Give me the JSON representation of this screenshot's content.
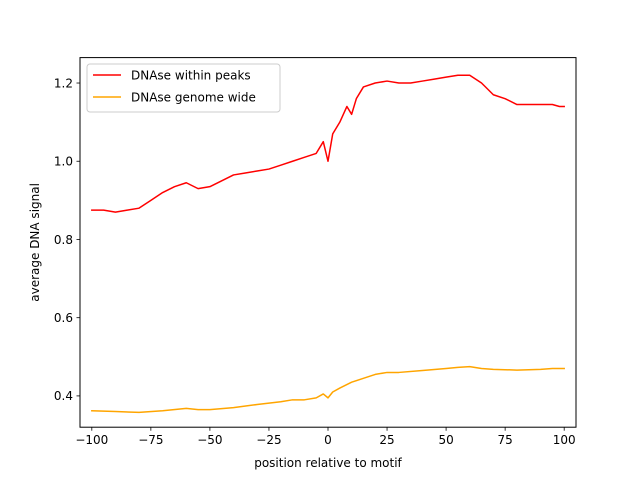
{
  "chart_data": {
    "type": "line",
    "xlabel": "position relative to motif",
    "ylabel": "average DNA signal",
    "xlim": [
      -105,
      105
    ],
    "ylim": [
      0.32,
      1.265
    ],
    "xticks": [
      -100,
      -75,
      -50,
      -25,
      0,
      25,
      50,
      75,
      100
    ],
    "xtick_labels": [
      "−100",
      "−75",
      "−50",
      "−25",
      "0",
      "25",
      "50",
      "75",
      "100"
    ],
    "yticks": [
      0.4,
      0.6,
      0.8,
      1.0,
      1.2
    ],
    "ytick_labels": [
      "0.4",
      "0.6",
      "0.8",
      "1.0",
      "1.2"
    ],
    "grid": false,
    "legend_position": "top-left",
    "series": [
      {
        "name": "DNAse within peaks",
        "color": "#ff0000",
        "x": [
          -100,
          -95,
          -90,
          -85,
          -80,
          -75,
          -70,
          -65,
          -60,
          -55,
          -50,
          -45,
          -40,
          -35,
          -30,
          -25,
          -20,
          -15,
          -10,
          -5,
          -2,
          0,
          2,
          5,
          8,
          10,
          12,
          15,
          20,
          25,
          30,
          35,
          40,
          45,
          50,
          55,
          58,
          60,
          65,
          70,
          75,
          80,
          85,
          90,
          95,
          98,
          100
        ],
        "y": [
          0.875,
          0.875,
          0.87,
          0.875,
          0.88,
          0.9,
          0.92,
          0.935,
          0.945,
          0.93,
          0.935,
          0.95,
          0.965,
          0.97,
          0.975,
          0.98,
          0.99,
          1.0,
          1.01,
          1.02,
          1.05,
          1.0,
          1.07,
          1.1,
          1.14,
          1.12,
          1.16,
          1.19,
          1.2,
          1.205,
          1.2,
          1.2,
          1.205,
          1.21,
          1.215,
          1.22,
          1.22,
          1.22,
          1.2,
          1.17,
          1.16,
          1.145,
          1.145,
          1.145,
          1.145,
          1.14,
          1.14
        ]
      },
      {
        "name": "DNAse genome wide",
        "color": "#ffa500",
        "x": [
          -100,
          -90,
          -80,
          -70,
          -60,
          -55,
          -50,
          -40,
          -30,
          -20,
          -15,
          -10,
          -5,
          -2,
          0,
          2,
          5,
          10,
          15,
          20,
          25,
          30,
          40,
          50,
          55,
          60,
          65,
          70,
          75,
          80,
          85,
          90,
          95,
          100
        ],
        "y": [
          0.362,
          0.36,
          0.358,
          0.362,
          0.368,
          0.365,
          0.365,
          0.37,
          0.378,
          0.385,
          0.39,
          0.39,
          0.395,
          0.405,
          0.395,
          0.41,
          0.42,
          0.435,
          0.445,
          0.455,
          0.46,
          0.46,
          0.465,
          0.47,
          0.473,
          0.475,
          0.47,
          0.468,
          0.467,
          0.466,
          0.467,
          0.468,
          0.47,
          0.47
        ]
      }
    ]
  }
}
